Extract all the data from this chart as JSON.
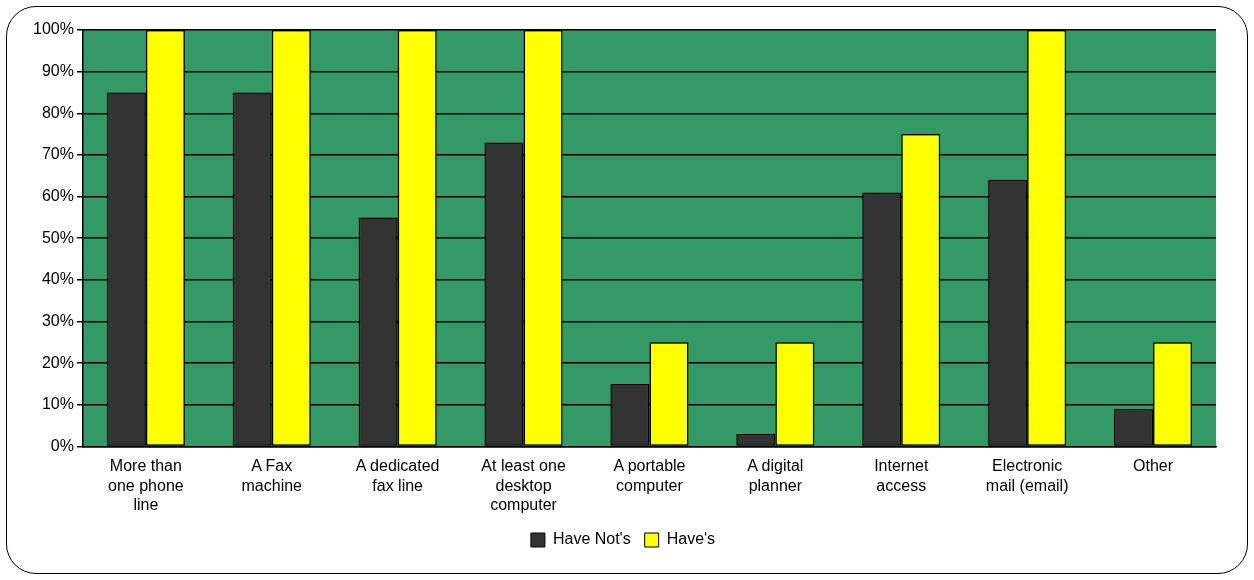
{
  "chart_data": {
    "type": "bar",
    "categories": [
      "More than one phone line",
      "A Fax machine",
      "A dedicated fax line",
      "At least one desktop computer",
      "A portable computer",
      "A digital planner",
      "Internet access",
      "Electronic mail (email)",
      "Other"
    ],
    "series": [
      {
        "name": "Have Not's",
        "color": "#333333",
        "values": [
          85,
          85,
          55,
          73,
          15,
          3,
          61,
          64,
          9
        ]
      },
      {
        "name": "Have's",
        "color": "#ffff00",
        "values": [
          100,
          100,
          100,
          100,
          25,
          25,
          75,
          100,
          25
        ]
      }
    ],
    "ylim": [
      0,
      100
    ],
    "yticks": [
      {
        "value": 0,
        "label": "0%"
      },
      {
        "value": 10,
        "label": "10%"
      },
      {
        "value": 20,
        "label": "20%"
      },
      {
        "value": 30,
        "label": "30%"
      },
      {
        "value": 40,
        "label": "40%"
      },
      {
        "value": 50,
        "label": "50%"
      },
      {
        "value": 60,
        "label": "60%"
      },
      {
        "value": 70,
        "label": "70%"
      },
      {
        "value": 80,
        "label": "80%"
      },
      {
        "value": 90,
        "label": "90%"
      },
      {
        "value": 100,
        "label": "100%"
      }
    ],
    "grid": "y",
    "legend": "bottom"
  }
}
